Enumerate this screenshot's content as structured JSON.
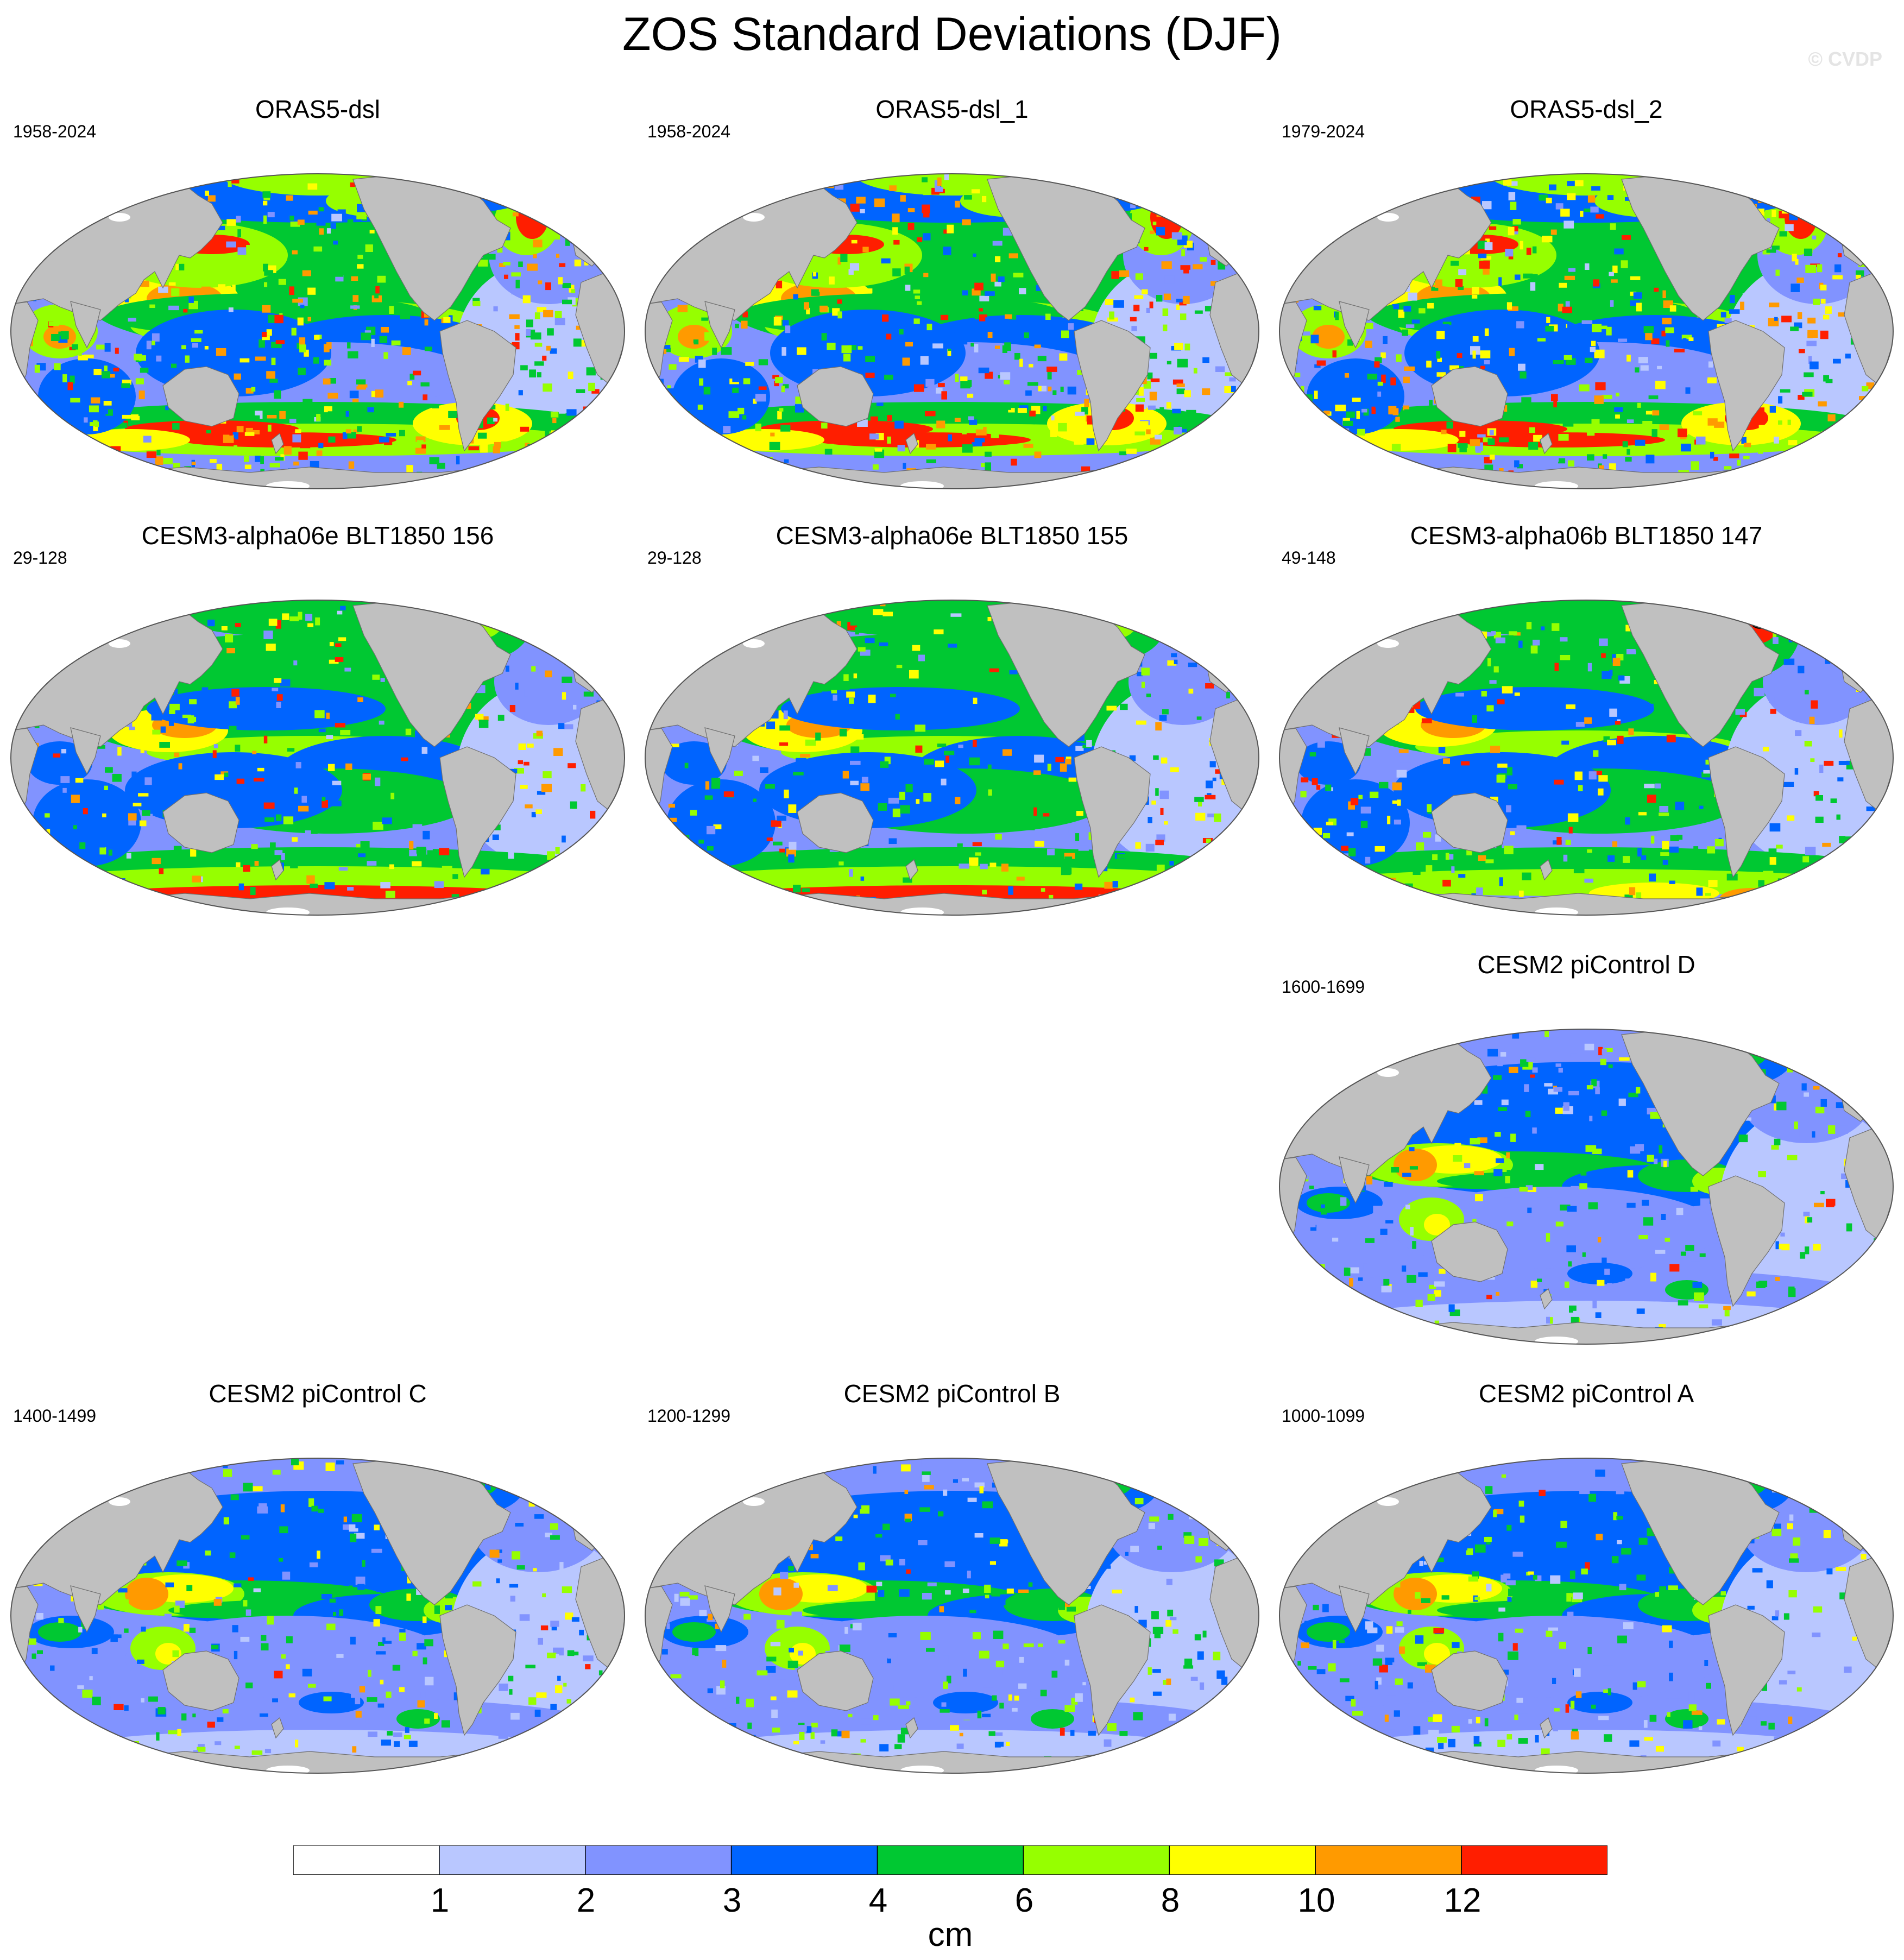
{
  "figure": {
    "title": "ZOS Standard Deviations (DJF)",
    "credit": "© CVDP"
  },
  "colors": {
    "land": "#c0c0c0",
    "missing": "#ffffff",
    "levels": [
      "#ffffff",
      "#b9c7ff",
      "#8193ff",
      "#0064ff",
      "#00c832",
      "#96ff00",
      "#ffff00",
      "#ff9a00",
      "#ff1e00"
    ]
  },
  "panels": [
    {
      "id": "p1",
      "title": "ORAS5-dsl",
      "years": "1958-2024",
      "style": "oras"
    },
    {
      "id": "p2",
      "title": "ORAS5-dsl_1",
      "years": "1958-2024",
      "style": "oras"
    },
    {
      "id": "p3",
      "title": "ORAS5-dsl_2",
      "years": "1979-2024",
      "style": "oras"
    },
    {
      "id": "p4",
      "title": "CESM3-alpha06e BLT1850 156",
      "years": "29-128",
      "style": "cesm3"
    },
    {
      "id": "p5",
      "title": "CESM3-alpha06e BLT1850 155",
      "years": "29-128",
      "style": "cesm3"
    },
    {
      "id": "p6",
      "title": "CESM3-alpha06b BLT1850 147",
      "years": "49-148",
      "style": "cesm3b"
    },
    {
      "id": "p7",
      "title": "CESM2 piControl D",
      "years": "1600-1699",
      "style": "cesm2"
    },
    {
      "id": "p8",
      "title": "CESM2 piControl C",
      "years": "1400-1499",
      "style": "cesm2"
    },
    {
      "id": "p9",
      "title": "CESM2 piControl B",
      "years": "1200-1299",
      "style": "cesm2"
    },
    {
      "id": "p10",
      "title": "CESM2 piControl A",
      "years": "1000-1099",
      "style": "cesm2"
    }
  ],
  "colorbar": {
    "ticks": [
      "1",
      "2",
      "3",
      "4",
      "6",
      "8",
      "10",
      "12"
    ],
    "units": "cm"
  }
}
